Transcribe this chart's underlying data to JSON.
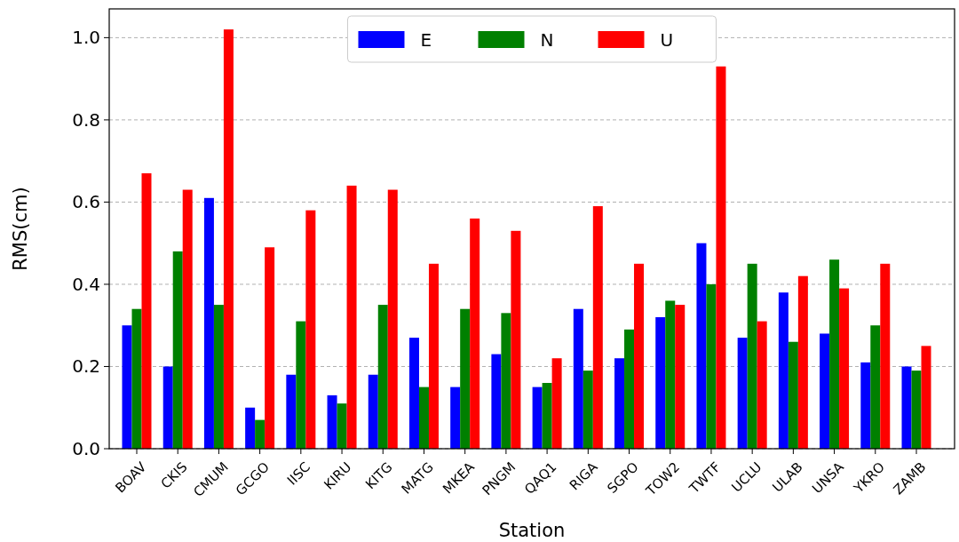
{
  "chart_data": {
    "type": "bar",
    "xlabel": "Station",
    "ylabel": "RMS(cm)",
    "categories": [
      "BOAV",
      "CKIS",
      "CMUM",
      "GCGO",
      "IISC",
      "KIRU",
      "KITG",
      "MATG",
      "MKEA",
      "PNGM",
      "QAQ1",
      "RIGA",
      "SGPO",
      "TOW2",
      "TWTF",
      "UCLU",
      "ULAB",
      "UNSA",
      "YKRO",
      "ZAMB"
    ],
    "series": [
      {
        "name": "E",
        "color": "#0000ff",
        "values": [
          0.3,
          0.2,
          0.61,
          0.1,
          0.18,
          0.13,
          0.18,
          0.27,
          0.15,
          0.23,
          0.15,
          0.34,
          0.22,
          0.32,
          0.5,
          0.27,
          0.38,
          0.28,
          0.21,
          0.2
        ]
      },
      {
        "name": "N",
        "color": "#008000",
        "values": [
          0.34,
          0.48,
          0.35,
          0.07,
          0.31,
          0.11,
          0.35,
          0.15,
          0.34,
          0.33,
          0.16,
          0.19,
          0.29,
          0.36,
          0.4,
          0.45,
          0.26,
          0.46,
          0.3,
          0.19
        ]
      },
      {
        "name": "U",
        "color": "#ff0000",
        "values": [
          0.67,
          0.63,
          1.02,
          0.49,
          0.58,
          0.64,
          0.63,
          0.45,
          0.56,
          0.53,
          0.22,
          0.59,
          0.45,
          0.35,
          0.93,
          0.31,
          0.42,
          0.39,
          0.45,
          0.25
        ]
      }
    ],
    "ylim": [
      0,
      1.07
    ],
    "yticks": [
      {
        "value": 0,
        "label": "0.0"
      },
      {
        "value": 0.2,
        "label": "0.2"
      },
      {
        "value": 0.4,
        "label": "0.4"
      },
      {
        "value": 0.6,
        "label": "0.6"
      },
      {
        "value": 0.8,
        "label": "0.8"
      },
      {
        "value": 1.0,
        "label": "1.0"
      }
    ],
    "grid": "y",
    "legend": "top"
  }
}
